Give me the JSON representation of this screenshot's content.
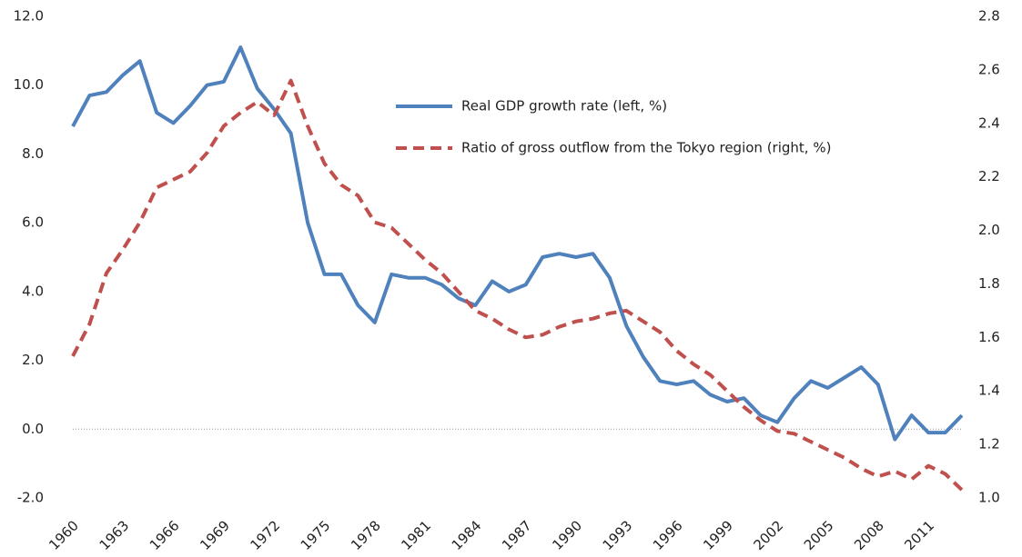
{
  "chart_data": {
    "type": "line",
    "categories": [
      "1960",
      null,
      null,
      "1963",
      null,
      null,
      "1966",
      null,
      null,
      "1969",
      null,
      null,
      "1972",
      null,
      null,
      "1975",
      null,
      null,
      "1978",
      null,
      null,
      "1981",
      null,
      null,
      "1984",
      null,
      null,
      "1987",
      null,
      null,
      "1990",
      null,
      null,
      "1993",
      null,
      null,
      "1996",
      null,
      null,
      "1999",
      null,
      null,
      "2002",
      null,
      null,
      "2005",
      null,
      null,
      "2008",
      null,
      null,
      "2011",
      null,
      null
    ],
    "series": [
      {
        "name": "Real GDP growth rate (left, %)",
        "color": "#4f81bd",
        "dash": "solid",
        "axis": "y",
        "values": [
          8.8,
          9.7,
          9.8,
          10.3,
          10.7,
          9.2,
          8.9,
          9.4,
          10.0,
          10.1,
          11.1,
          9.9,
          9.3,
          8.6,
          6.0,
          4.5,
          4.5,
          3.6,
          3.1,
          4.5,
          4.4,
          4.4,
          4.2,
          3.8,
          3.6,
          4.3,
          4.0,
          4.2,
          5.0,
          5.1,
          5.0,
          5.1,
          4.4,
          3.0,
          2.1,
          1.4,
          1.3,
          1.4,
          1.0,
          0.8,
          0.9,
          0.4,
          0.2,
          0.9,
          1.4,
          1.2,
          1.5,
          1.8,
          1.3,
          -0.3,
          0.4,
          -0.1,
          -0.1,
          0.4
        ]
      },
      {
        "name": "Ratio of gross outflow from the Tokyo region (right, %)",
        "color": "#c0504d",
        "dash": "dashed",
        "axis": "y2",
        "values": [
          1.53,
          1.65,
          1.84,
          1.93,
          2.03,
          2.16,
          2.19,
          2.22,
          2.29,
          2.39,
          2.44,
          2.48,
          2.43,
          2.56,
          2.39,
          2.25,
          2.17,
          2.13,
          2.03,
          2.01,
          1.95,
          1.89,
          1.84,
          1.77,
          1.7,
          1.67,
          1.63,
          1.6,
          1.61,
          1.64,
          1.66,
          1.67,
          1.69,
          1.7,
          1.66,
          1.62,
          1.55,
          1.5,
          1.46,
          1.4,
          1.34,
          1.29,
          1.25,
          1.24,
          1.21,
          1.18,
          1.15,
          1.11,
          1.08,
          1.1,
          1.07,
          1.12,
          1.09,
          1.03
        ]
      }
    ],
    "ylim": [
      -2,
      12
    ],
    "yticks": [
      {
        "value": -2,
        "label": "-2.0"
      },
      {
        "value": 0,
        "label": "0.0"
      },
      {
        "value": 2,
        "label": "2.0"
      },
      {
        "value": 4,
        "label": "4.0"
      },
      {
        "value": 6,
        "label": "6.0"
      },
      {
        "value": 8,
        "label": "8.0"
      },
      {
        "value": 10,
        "label": "10.0"
      },
      {
        "value": 12,
        "label": "12.0"
      }
    ],
    "y2lim": [
      1.0,
      2.8
    ],
    "y2ticks": [
      {
        "value": 1.0,
        "label": "1.0"
      },
      1.2,
      1.4,
      1.6,
      1.8,
      {
        "value": 2.0,
        "label": "2.0"
      },
      2.2,
      2.4,
      2.6,
      2.8
    ],
    "legend": "upper-center"
  }
}
